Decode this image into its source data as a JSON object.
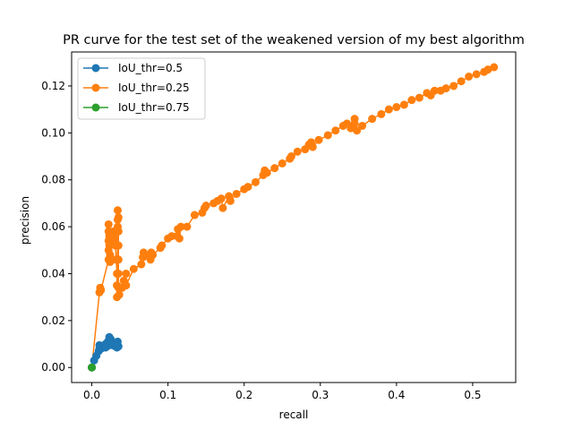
{
  "chart_data": {
    "type": "line",
    "title": "PR curve for the test set of the weakened version of my best algorithm",
    "xlabel": "recall",
    "ylabel": "precision",
    "xlim": [
      -0.0265,
      0.5565
    ],
    "ylim": [
      -0.0064,
      0.1345
    ],
    "xticks": [
      0.0,
      0.1,
      0.2,
      0.3,
      0.4,
      0.5
    ],
    "xtick_labels": [
      "0.0",
      "0.1",
      "0.2",
      "0.3",
      "0.4",
      "0.5"
    ],
    "yticks": [
      0.0,
      0.02,
      0.04,
      0.06,
      0.08,
      0.1,
      0.12
    ],
    "ytick_labels": [
      "0.00",
      "0.02",
      "0.04",
      "0.06",
      "0.08",
      "0.10",
      "0.12"
    ],
    "grid": false,
    "legend_position": "top-left",
    "marker": "circle",
    "series": [
      {
        "name": "IoU_thr=0.5",
        "color": "#1f77b4",
        "points": [
          [
            0.0,
            0.0
          ],
          [
            0.003,
            0.003
          ],
          [
            0.006,
            0.005
          ],
          [
            0.009,
            0.007
          ],
          [
            0.01,
            0.008
          ],
          [
            0.01,
            0.0095
          ],
          [
            0.012,
            0.008
          ],
          [
            0.014,
            0.0085
          ],
          [
            0.016,
            0.009
          ],
          [
            0.018,
            0.0085
          ],
          [
            0.018,
            0.01
          ],
          [
            0.02,
            0.009
          ],
          [
            0.021,
            0.011
          ],
          [
            0.022,
            0.0095
          ],
          [
            0.023,
            0.012
          ],
          [
            0.023,
            0.013
          ],
          [
            0.024,
            0.01
          ],
          [
            0.025,
            0.012
          ],
          [
            0.026,
            0.0105
          ],
          [
            0.027,
            0.0095
          ],
          [
            0.028,
            0.01
          ],
          [
            0.029,
            0.0095
          ],
          [
            0.03,
            0.0095
          ],
          [
            0.031,
            0.009
          ],
          [
            0.032,
            0.01
          ],
          [
            0.033,
            0.0085
          ],
          [
            0.034,
            0.011
          ],
          [
            0.034,
            0.0095
          ],
          [
            0.035,
            0.009
          ]
        ]
      },
      {
        "name": "IoU_thr=0.25",
        "color": "#ff7f0e",
        "points": [
          [
            0.0,
            0.0
          ],
          [
            0.01,
            0.032
          ],
          [
            0.011,
            0.034
          ],
          [
            0.012,
            0.033
          ],
          [
            0.022,
            0.046
          ],
          [
            0.022,
            0.05
          ],
          [
            0.022,
            0.054
          ],
          [
            0.022,
            0.058
          ],
          [
            0.022,
            0.061
          ],
          [
            0.023,
            0.056
          ],
          [
            0.023,
            0.052
          ],
          [
            0.024,
            0.048
          ],
          [
            0.024,
            0.045
          ],
          [
            0.025,
            0.055
          ],
          [
            0.026,
            0.057
          ],
          [
            0.027,
            0.054
          ],
          [
            0.028,
            0.058
          ],
          [
            0.029,
            0.055
          ],
          [
            0.03,
            0.057
          ],
          [
            0.031,
            0.052
          ],
          [
            0.032,
            0.046
          ],
          [
            0.033,
            0.04
          ],
          [
            0.033,
            0.035
          ],
          [
            0.033,
            0.03
          ],
          [
            0.034,
            0.06
          ],
          [
            0.034,
            0.063
          ],
          [
            0.034,
            0.067
          ],
          [
            0.035,
            0.064
          ],
          [
            0.035,
            0.058
          ],
          [
            0.035,
            0.052
          ],
          [
            0.035,
            0.046
          ],
          [
            0.035,
            0.04
          ],
          [
            0.035,
            0.034
          ],
          [
            0.036,
            0.031
          ],
          [
            0.04,
            0.034
          ],
          [
            0.042,
            0.037
          ],
          [
            0.045,
            0.04
          ],
          [
            0.045,
            0.035
          ],
          [
            0.055,
            0.042
          ],
          [
            0.065,
            0.044
          ],
          [
            0.067,
            0.047
          ],
          [
            0.068,
            0.049
          ],
          [
            0.07,
            0.048
          ],
          [
            0.077,
            0.046
          ],
          [
            0.078,
            0.049
          ],
          [
            0.08,
            0.048
          ],
          [
            0.09,
            0.051
          ],
          [
            0.092,
            0.052
          ],
          [
            0.1,
            0.055
          ],
          [
            0.105,
            0.056
          ],
          [
            0.112,
            0.056
          ],
          [
            0.113,
            0.059
          ],
          [
            0.115,
            0.055
          ],
          [
            0.117,
            0.06
          ],
          [
            0.125,
            0.06
          ],
          [
            0.135,
            0.065
          ],
          [
            0.145,
            0.066
          ],
          [
            0.148,
            0.068
          ],
          [
            0.15,
            0.069
          ],
          [
            0.16,
            0.07
          ],
          [
            0.165,
            0.071
          ],
          [
            0.17,
            0.072
          ],
          [
            0.172,
            0.068
          ],
          [
            0.18,
            0.073
          ],
          [
            0.182,
            0.071
          ],
          [
            0.19,
            0.074
          ],
          [
            0.2,
            0.076
          ],
          [
            0.205,
            0.077
          ],
          [
            0.215,
            0.079
          ],
          [
            0.225,
            0.082
          ],
          [
            0.227,
            0.084
          ],
          [
            0.23,
            0.083
          ],
          [
            0.24,
            0.085
          ],
          [
            0.25,
            0.087
          ],
          [
            0.26,
            0.089
          ],
          [
            0.262,
            0.09
          ],
          [
            0.27,
            0.092
          ],
          [
            0.28,
            0.093
          ],
          [
            0.285,
            0.095
          ],
          [
            0.288,
            0.096
          ],
          [
            0.29,
            0.094
          ],
          [
            0.298,
            0.097
          ],
          [
            0.31,
            0.099
          ],
          [
            0.32,
            0.101
          ],
          [
            0.33,
            0.103
          ],
          [
            0.335,
            0.104
          ],
          [
            0.34,
            0.102
          ],
          [
            0.345,
            0.104
          ],
          [
            0.345,
            0.106
          ],
          [
            0.348,
            0.101
          ],
          [
            0.355,
            0.103
          ],
          [
            0.368,
            0.106
          ],
          [
            0.38,
            0.108
          ],
          [
            0.39,
            0.11
          ],
          [
            0.4,
            0.111
          ],
          [
            0.41,
            0.112
          ],
          [
            0.42,
            0.114
          ],
          [
            0.43,
            0.115
          ],
          [
            0.44,
            0.117
          ],
          [
            0.445,
            0.116
          ],
          [
            0.45,
            0.118
          ],
          [
            0.458,
            0.118
          ],
          [
            0.465,
            0.119
          ],
          [
            0.475,
            0.12
          ],
          [
            0.485,
            0.122
          ],
          [
            0.495,
            0.124
          ],
          [
            0.505,
            0.125
          ],
          [
            0.515,
            0.126
          ],
          [
            0.52,
            0.127
          ],
          [
            0.528,
            0.128
          ]
        ]
      },
      {
        "name": "IoU_thr=0.75",
        "color": "#2ca02c",
        "points": [
          [
            0.0,
            0.0
          ]
        ]
      }
    ]
  }
}
